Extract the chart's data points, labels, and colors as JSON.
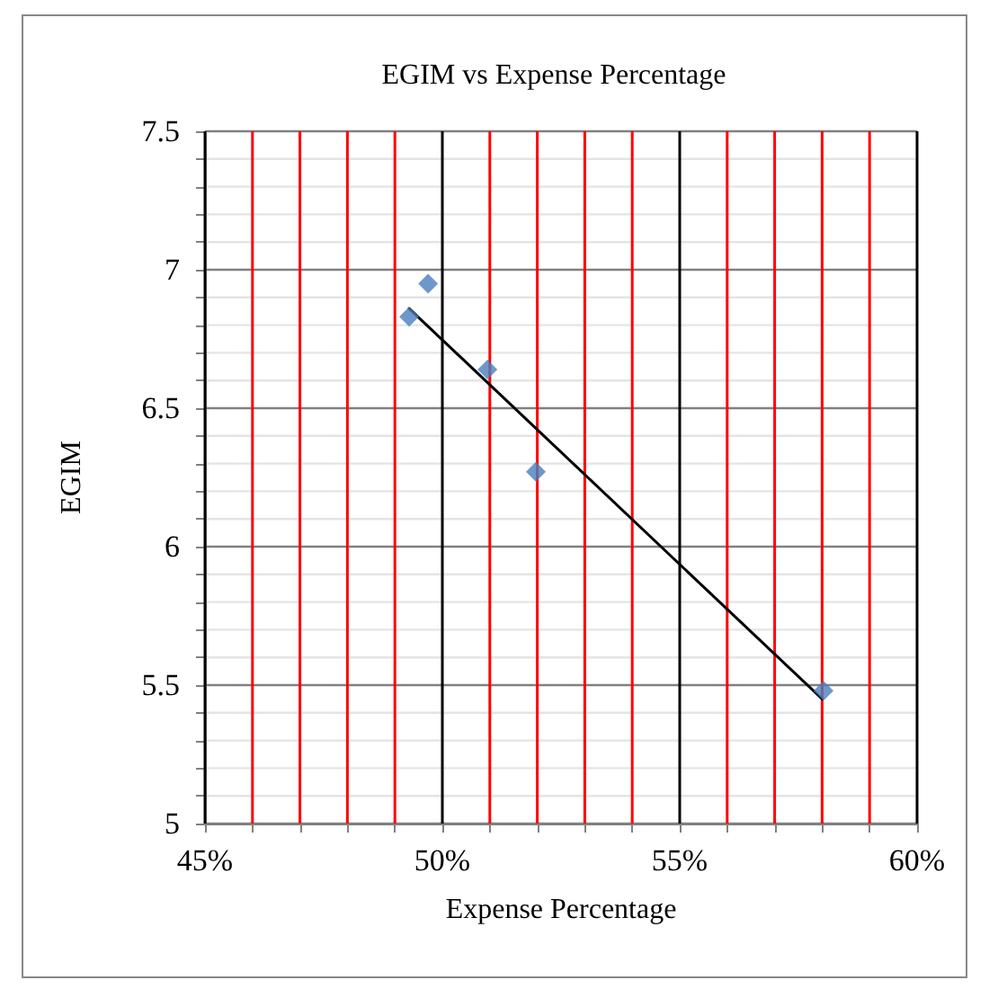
{
  "chart_data": {
    "type": "scatter",
    "title": "EGIM vs Expense Percentage",
    "xlabel": "Expense Percentage",
    "ylabel": "EGIM",
    "series": [
      {
        "type": "scatter",
        "color": "#4a7ebb",
        "x": [
          0.493,
          0.497,
          0.5095,
          0.5197,
          0.5803
        ],
        "values": [
          6.83,
          6.95,
          6.64,
          6.27,
          5.48
        ],
        "marker": "diamond"
      },
      {
        "type": "line",
        "color": "#000000",
        "x": [
          0.493,
          0.58
        ],
        "values": [
          6.86,
          5.45
        ],
        "marker": "none",
        "line_style": "solid"
      }
    ],
    "xlim": [
      0.45,
      0.6
    ],
    "xticks": [
      {
        "value": 0.45,
        "label": "45%"
      },
      {
        "value": 0.46,
        "label": null
      },
      {
        "value": 0.47,
        "label": null
      },
      {
        "value": 0.48,
        "label": null
      },
      {
        "value": 0.49,
        "label": null
      },
      {
        "value": 0.5,
        "label": "50%"
      },
      {
        "value": 0.51,
        "label": null
      },
      {
        "value": 0.52,
        "label": null
      },
      {
        "value": 0.53,
        "label": null
      },
      {
        "value": 0.54,
        "label": null
      },
      {
        "value": 0.55,
        "label": "55%"
      },
      {
        "value": 0.56,
        "label": null
      },
      {
        "value": 0.57,
        "label": null
      },
      {
        "value": 0.58,
        "label": null
      },
      {
        "value": 0.59,
        "label": null
      },
      {
        "value": 0.6,
        "label": "60%"
      }
    ],
    "ylim": [
      5,
      7.5
    ],
    "yticks": [
      5,
      {
        "value": 5.1,
        "label": null
      },
      {
        "value": 5.2,
        "label": null
      },
      {
        "value": 5.3,
        "label": null
      },
      {
        "value": 5.4,
        "label": null
      },
      5.5,
      {
        "value": 5.6,
        "label": null
      },
      {
        "value": 5.7,
        "label": null
      },
      {
        "value": 5.8,
        "label": null
      },
      {
        "value": 5.9,
        "label": null
      },
      6,
      {
        "value": 6.1,
        "label": null
      },
      {
        "value": 6.2,
        "label": null
      },
      {
        "value": 6.3,
        "label": null
      },
      {
        "value": 6.4,
        "label": null
      },
      6.5,
      {
        "value": 6.6,
        "label": null
      },
      {
        "value": 6.7,
        "label": null
      },
      {
        "value": 6.8,
        "label": null
      },
      {
        "value": 6.9,
        "label": null
      },
      7,
      {
        "value": 7.1,
        "label": null
      },
      {
        "value": 7.2,
        "label": null
      },
      {
        "value": 7.3,
        "label": null
      },
      {
        "value": 7.4,
        "label": null
      },
      7.5
    ],
    "grid": true
  }
}
